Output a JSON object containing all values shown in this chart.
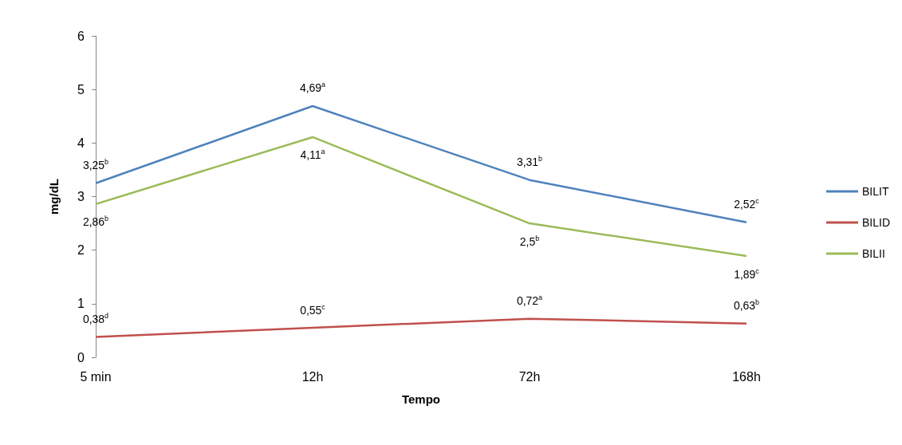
{
  "chart_data": {
    "type": "line",
    "xlabel": "Tempo",
    "ylabel": "mg/dL",
    "categories": [
      "5 min",
      "12h",
      "72h",
      "168h"
    ],
    "series": [
      {
        "name": "BILIT",
        "color": "#4f81bd",
        "values": [
          3.25,
          4.69,
          3.31,
          2.52
        ],
        "value_labels": [
          "3,25$^{b}$",
          "4,69$^{a}$",
          "3,31$^{b}$",
          "2,52$^{c}$"
        ]
      },
      {
        "name": "BILID",
        "color": "#c0504d",
        "values": [
          0.38,
          0.55,
          0.72,
          0.63
        ],
        "value_labels": [
          "0,38$^{d}$",
          "0,55$^{c}$",
          "0,72$^{a}$",
          "0,63$^{b}$"
        ]
      },
      {
        "name": "BILII",
        "color": "#9bbb59",
        "values": [
          2.86,
          4.11,
          2.5,
          1.89
        ],
        "value_labels": [
          "2,86$^{b}$",
          "4,11$^{a}$",
          "2,5$^{b}$",
          "1,89$^{c}$"
        ]
      }
    ],
    "ylim": [
      0,
      6
    ],
    "yticks": [
      0,
      1,
      2,
      3,
      4,
      5,
      6
    ],
    "grid": false,
    "legend": "right",
    "marker": "none",
    "line_style": "solid"
  }
}
